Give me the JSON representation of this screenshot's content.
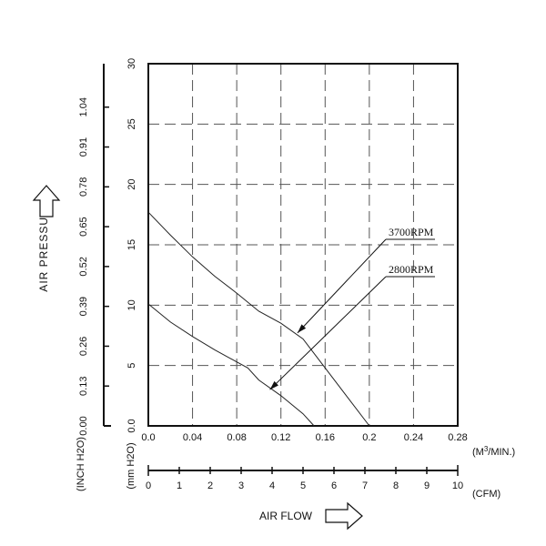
{
  "chart_data": {
    "type": "line",
    "title": "",
    "ylabel": "AIR PRESSURE",
    "xlabel": "AIR FLOW",
    "x_unit": "(M3/MIN.)",
    "x_unit_main": "(M",
    "x_unit_sup": "3",
    "x_unit_tail": "/MIN.)",
    "x2_unit": "(CFM)",
    "y_unit_outer": "(INCH H2O)",
    "y_unit_inner": "(mm H2O)",
    "xlim": [
      0,
      0.28
    ],
    "ylim": [
      0,
      30
    ],
    "x_ticks": [
      "0.0",
      "0.04",
      "0.08",
      "0.12",
      "0.16",
      "0.2",
      "0.24",
      "0.28"
    ],
    "y_ticks": [
      "0.0",
      "5",
      "10",
      "15",
      "20",
      "25",
      "30"
    ],
    "y2_ticks": [
      "0.00",
      "0.13",
      "0.26",
      "0.39",
      "0.52",
      "0.65",
      "0.78",
      "0.91",
      "1.04"
    ],
    "y2_values_mm": [
      0,
      3.3,
      6.6,
      9.9,
      13.2,
      16.5,
      19.8,
      23.1,
      26.4
    ],
    "x2_ticks": [
      "0",
      "1",
      "2",
      "3",
      "4",
      "5",
      "6",
      "7",
      "8",
      "9",
      "10"
    ],
    "x2_max": 10,
    "grid": true,
    "series": [
      {
        "name": "3700RPM",
        "x": [
          0,
          0.02,
          0.04,
          0.06,
          0.08,
          0.1,
          0.12,
          0.14,
          0.16,
          0.18,
          0.2
        ],
        "y": [
          17.7,
          15.8,
          14.0,
          12.4,
          11.0,
          9.5,
          8.5,
          7.2,
          4.8,
          2.4,
          0
        ]
      },
      {
        "name": "2800RPM",
        "x": [
          0,
          0.02,
          0.04,
          0.06,
          0.08,
          0.09,
          0.1,
          0.12,
          0.14,
          0.15
        ],
        "y": [
          10.1,
          8.6,
          7.4,
          6.3,
          5.3,
          4.8,
          3.8,
          2.5,
          1.0,
          0
        ]
      }
    ],
    "annotations": [
      {
        "series": "3700RPM",
        "text": "3700RPM",
        "point": [
          0.135,
          7.7
        ]
      },
      {
        "series": "2800RPM",
        "text": "2800RPM",
        "point": [
          0.11,
          3.0
        ]
      }
    ]
  }
}
